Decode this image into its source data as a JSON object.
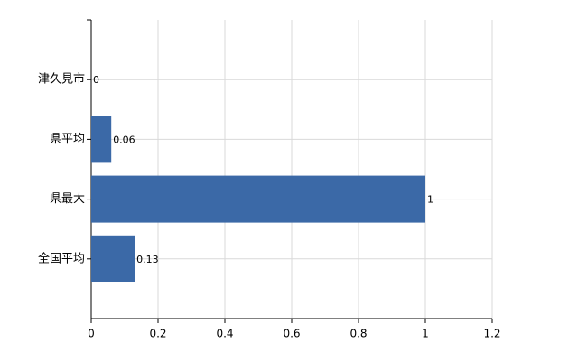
{
  "chart_data": {
    "type": "bar",
    "orientation": "horizontal",
    "categories": [
      "津久見市",
      "県平均",
      "県最大",
      "全国平均"
    ],
    "values": [
      0,
      0.06,
      1,
      0.13
    ],
    "color": "#3b69a7",
    "xlim": [
      0,
      1.2
    ],
    "xticks": [
      0,
      0.2,
      0.4,
      0.6,
      0.8,
      1,
      1.2
    ],
    "grid": true
  }
}
